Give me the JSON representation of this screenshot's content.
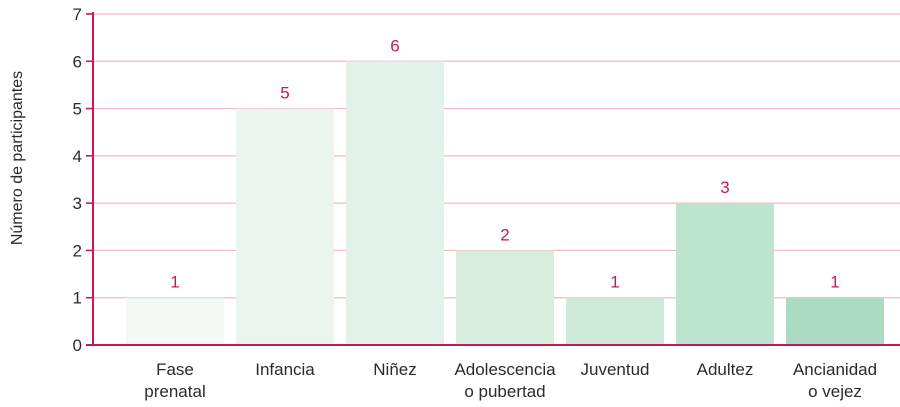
{
  "chart_data": {
    "type": "bar",
    "title": "",
    "xlabel": "",
    "ylabel": "Número de participantes",
    "ylim": [
      0,
      7
    ],
    "yticks": [
      0,
      1,
      2,
      3,
      4,
      5,
      6,
      7
    ],
    "grid": true,
    "legend": "none",
    "categories": [
      [
        "Fase",
        "prenatal"
      ],
      [
        "Infancia"
      ],
      [
        "Niñez"
      ],
      [
        "Adolescencia",
        "o pubertad"
      ],
      [
        "Juventud"
      ],
      [
        "Adultez"
      ],
      [
        "Ancianidad",
        "o vejez"
      ]
    ],
    "values": [
      1,
      5,
      6,
      2,
      1,
      3,
      1
    ],
    "data_labels": [
      "1",
      "5",
      "6",
      "2",
      "1",
      "3",
      "1"
    ],
    "colors": {
      "axis": "#c8185a",
      "grid": "#f2b8c8",
      "value_label": "#c8185a",
      "bars": [
        "#f3f8f4",
        "#eaf5ee",
        "#e3f2e8",
        "#d7eedf",
        "#cdeada",
        "#bde4cf",
        "#abdcc2"
      ]
    }
  }
}
